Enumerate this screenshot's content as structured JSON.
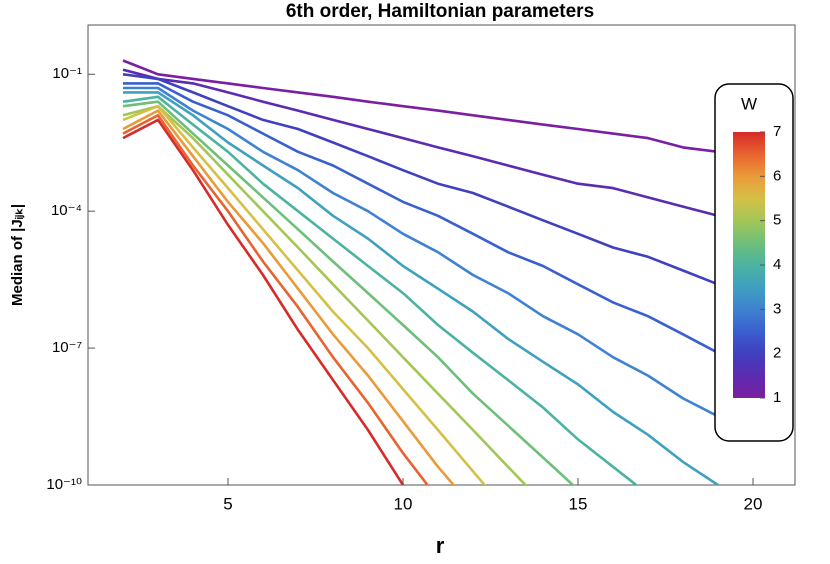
{
  "chart_data": {
    "type": "line",
    "title": "6th order, Hamiltonian parameters",
    "xlabel": "r",
    "ylabel": "Median of |Jᵢⱼₖ|",
    "log_y": true,
    "xlim": [
      1,
      21.2
    ],
    "ylim": [
      1e-10,
      1.2
    ],
    "xticks": [
      5,
      10,
      15,
      20
    ],
    "yticks": [
      {
        "value": 0.1,
        "label": "10⁻¹"
      },
      {
        "value": 0.0001,
        "label": "10⁻⁴"
      },
      {
        "value": 1e-07,
        "label": "10⁻⁷"
      },
      {
        "value": 1e-10,
        "label": "10⁻¹⁰"
      }
    ],
    "x": [
      2,
      3,
      4,
      5,
      6,
      7,
      8,
      9,
      10,
      11,
      12,
      13,
      14,
      15,
      16,
      17,
      18,
      19
    ],
    "series": [
      {
        "color": "#7b1fa2",
        "values": [
          0.2,
          0.1,
          0.079,
          0.063,
          0.05,
          0.04,
          0.032,
          0.025,
          0.02,
          0.016,
          0.0126,
          0.01,
          0.0079,
          0.0063,
          0.005,
          0.004,
          0.0025,
          0.002
        ]
      },
      {
        "color": "#5b2bb0",
        "values": [
          0.126,
          0.079,
          0.063,
          0.04,
          0.025,
          0.016,
          0.01,
          0.0063,
          0.004,
          0.0025,
          0.0016,
          0.001,
          0.00063,
          0.0004,
          0.00032,
          0.0002,
          0.000126,
          7.9e-05
        ]
      },
      {
        "color": "#4040c0",
        "values": [
          0.1,
          0.079,
          0.04,
          0.02,
          0.01,
          0.0063,
          0.0032,
          0.0016,
          0.00079,
          0.0004,
          0.00025,
          0.000126,
          6.3e-05,
          3.2e-05,
          1.6e-05,
          1e-05,
          5e-06,
          2.5e-06
        ]
      },
      {
        "color": "#3a5fcf",
        "values": [
          0.063,
          0.063,
          0.025,
          0.0126,
          0.005,
          0.002,
          0.001,
          0.0004,
          0.00016,
          7.9e-05,
          3.2e-05,
          1.26e-05,
          6.3e-06,
          2.5e-06,
          1e-06,
          5e-07,
          2e-07,
          7.9e-08
        ]
      },
      {
        "color": "#3f82d0",
        "values": [
          0.05,
          0.05,
          0.016,
          0.0063,
          0.002,
          0.00079,
          0.00025,
          0.0001,
          3.2e-05,
          1.26e-05,
          4e-06,
          1.6e-06,
          5e-07,
          2e-07,
          6.3e-08,
          2.5e-08,
          7.9e-09,
          3.2e-09
        ]
      },
      {
        "color": "#3fa0bf",
        "values": [
          0.04,
          0.04,
          0.0126,
          0.0032,
          0.001,
          0.00032,
          7.9e-05,
          2.5e-05,
          6.3e-06,
          2e-06,
          6.3e-07,
          1.6e-07,
          5e-08,
          1.6e-08,
          4e-09,
          1.26e-09,
          3.2e-10,
          1e-10
        ]
      },
      {
        "color": "#4cb3a0",
        "values": [
          0.025,
          0.032,
          0.0079,
          0.002,
          0.0004,
          0.0001,
          2.5e-05,
          6.3e-06,
          1.6e-06,
          3.2e-07,
          7.9e-08,
          2e-08,
          5e-09,
          1e-09,
          2.5e-10,
          6.3e-11,
          null,
          null
        ]
      },
      {
        "color": "#6ebf7a",
        "values": [
          0.02,
          0.025,
          0.005,
          0.001,
          0.0002,
          4e-05,
          7.9e-06,
          1.6e-06,
          3.2e-07,
          6.3e-08,
          1e-08,
          2e-09,
          4e-10,
          7.9e-11,
          null,
          null,
          null,
          null
        ]
      },
      {
        "color": "#a3c657",
        "values": [
          0.0126,
          0.02,
          0.004,
          0.00063,
          0.0001,
          1.6e-05,
          2.5e-06,
          4e-07,
          6.3e-08,
          1e-08,
          1.6e-09,
          2.5e-10,
          4e-11,
          null,
          null,
          null,
          null,
          null
        ]
      },
      {
        "color": "#d5c046",
        "values": [
          0.01,
          0.02,
          0.0025,
          0.00032,
          4e-05,
          5e-06,
          6.3e-07,
          1e-07,
          1.26e-08,
          1.6e-09,
          2e-10,
          2.5e-11,
          null,
          null,
          null,
          null,
          null,
          null
        ]
      },
      {
        "color": "#eb9a3a",
        "values": [
          0.0063,
          0.016,
          0.0016,
          0.00016,
          2e-05,
          2e-06,
          2e-07,
          2.5e-08,
          2.5e-09,
          2.5e-10,
          3.2e-11,
          null,
          null,
          null,
          null,
          null,
          null,
          null
        ]
      },
      {
        "color": "#e8632f",
        "values": [
          0.005,
          0.0126,
          0.001,
          0.0001,
          7.9e-06,
          7.9e-07,
          6.3e-08,
          6.3e-09,
          5e-10,
          5e-11,
          null,
          null,
          null,
          null,
          null,
          null,
          null,
          null
        ]
      },
      {
        "color": "#d62b28",
        "values": [
          0.004,
          0.01,
          0.00079,
          5e-05,
          4e-06,
          2.5e-07,
          2e-08,
          1.6e-09,
          1e-10,
          7.9e-12,
          null,
          null,
          null,
          null,
          null,
          null,
          null,
          null
        ]
      }
    ],
    "colorbar": {
      "title": "W",
      "lim": [
        1,
        7
      ],
      "ticks": [
        1,
        2,
        3,
        4,
        5,
        6,
        7
      ]
    }
  }
}
